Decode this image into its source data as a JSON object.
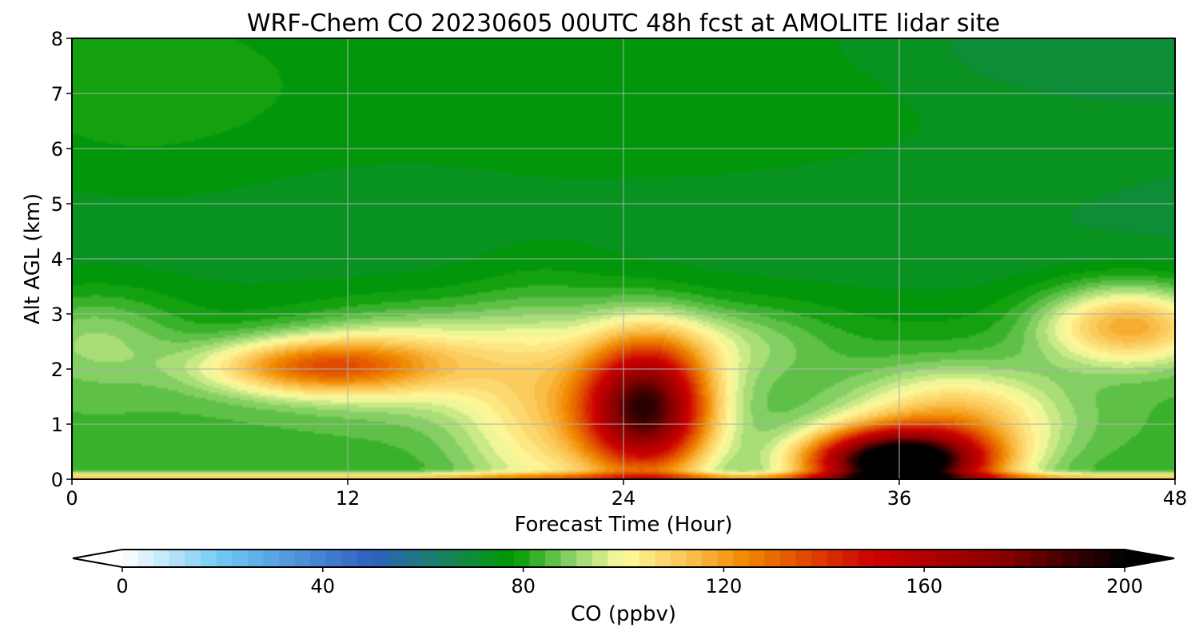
{
  "chart_data": {
    "type": "heatmap",
    "title": "WRF-Chem CO  20230605 00UTC 48h fcst at AMOLITE lidar site",
    "xlabel": "Forecast Time (Hour)",
    "ylabel": "Alt AGL (km)",
    "xlim": [
      0,
      48
    ],
    "ylim": [
      0,
      8
    ],
    "x_ticks": [
      0,
      12,
      24,
      36,
      48
    ],
    "y_ticks": [
      0,
      1,
      2,
      3,
      4,
      5,
      6,
      7,
      8
    ],
    "grid": true,
    "colorbar": {
      "label": "CO  (ppbv)",
      "range": [
        0,
        200
      ],
      "ticks": [
        0,
        40,
        80,
        120,
        160,
        200
      ],
      "extend": "both",
      "colors": [
        {
          "v": 0,
          "c": "#ffffff"
        },
        {
          "v": 20,
          "c": "#6fc8f4"
        },
        {
          "v": 50,
          "c": "#2f5fbf"
        },
        {
          "v": 62,
          "c": "#1b7f6e"
        },
        {
          "v": 78,
          "c": "#009900"
        },
        {
          "v": 90,
          "c": "#8fd46b"
        },
        {
          "v": 100,
          "c": "#fffca0"
        },
        {
          "v": 112,
          "c": "#fbc757"
        },
        {
          "v": 124,
          "c": "#f18a00"
        },
        {
          "v": 150,
          "c": "#cc0000"
        },
        {
          "v": 175,
          "c": "#8b0000"
        },
        {
          "v": 200,
          "c": "#000000"
        }
      ]
    },
    "field": {
      "background_upper": 74,
      "features": [
        {
          "kind": "band",
          "t0": 0,
          "t1": 48,
          "z": 4.6,
          "sz": 1.6,
          "amp": -4
        },
        {
          "kind": "blob",
          "t": 25,
          "z": 6.4,
          "st": 14,
          "sz": 1.6,
          "amp": 5
        },
        {
          "kind": "blob",
          "t": 2,
          "z": 6.8,
          "st": 6,
          "sz": 1.6,
          "amp": 6
        },
        {
          "kind": "blob",
          "t": 44,
          "z": 7.8,
          "st": 6,
          "sz": 0.7,
          "amp": -6
        },
        {
          "kind": "band",
          "t0": 0,
          "t1": 48,
          "z": 1.2,
          "sz": 1.5,
          "amp": 10
        },
        {
          "kind": "blob",
          "t": 1,
          "z": 2.6,
          "st": 2.5,
          "sz": 0.6,
          "amp": 12
        },
        {
          "kind": "blob",
          "t": 10.5,
          "z": 2.05,
          "st": 3.2,
          "sz": 0.35,
          "amp": 44
        },
        {
          "kind": "blob",
          "t": 15,
          "z": 2.2,
          "st": 3.5,
          "sz": 0.6,
          "amp": 22
        },
        {
          "kind": "blob",
          "t": 20.5,
          "z": 1.2,
          "st": 2.5,
          "sz": 1.4,
          "amp": 22
        },
        {
          "kind": "blob",
          "t": 25,
          "z": 1.3,
          "st": 1.9,
          "sz": 0.85,
          "amp": 105
        },
        {
          "kind": "blob",
          "t": 28.5,
          "z": 2.5,
          "st": 3,
          "sz": 0.5,
          "amp": 12
        },
        {
          "kind": "blob",
          "t": 36,
          "z": 0.3,
          "st": 2.6,
          "sz": 0.4,
          "amp": 140
        },
        {
          "kind": "blob",
          "t": 38.5,
          "z": 1.1,
          "st": 3,
          "sz": 0.6,
          "amp": 30
        },
        {
          "kind": "blob",
          "t": 46,
          "z": 2.8,
          "st": 2.6,
          "sz": 0.5,
          "amp": 40
        },
        {
          "kind": "band",
          "t0": 0,
          "t1": 48,
          "z": 0.03,
          "sz": 0.06,
          "amp": 30
        }
      ]
    }
  }
}
